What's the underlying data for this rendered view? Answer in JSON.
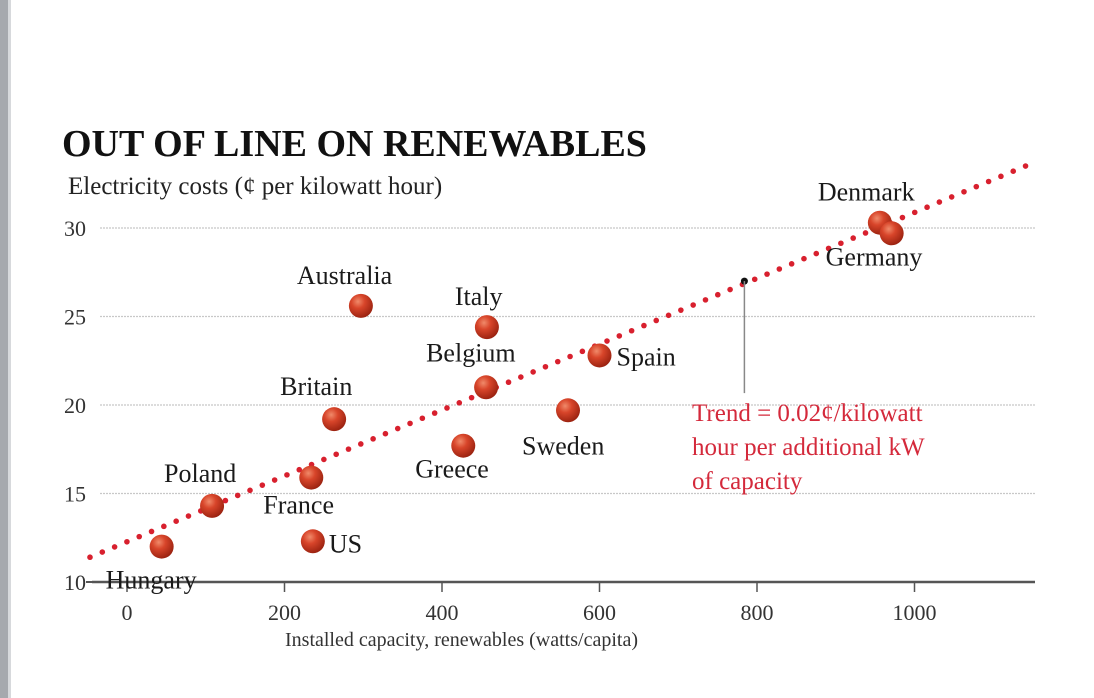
{
  "chart_data": {
    "type": "scatter",
    "title": "OUT OF LINE ON RENEWABLES",
    "subtitle": "Electricity costs (¢ per kilowatt hour)",
    "xlabel": "Installed capacity, renewables (watts/capita)",
    "ylabel": "Electricity costs (¢ per kilowatt hour)",
    "xlim": [
      -60,
      1150
    ],
    "ylim": [
      10,
      33
    ],
    "x_ticks": [
      0,
      200,
      400,
      600,
      800,
      1000
    ],
    "x_tick_labels": [
      "0",
      "200",
      "400",
      "600",
      "800",
      "1000"
    ],
    "y_ticks": [
      10,
      15,
      20,
      25,
      30
    ],
    "y_tick_labels": [
      "10",
      "15",
      "20",
      "25",
      "30"
    ],
    "grid": true,
    "points": [
      {
        "label": "Hungary",
        "x": 44,
        "y": 12.0
      },
      {
        "label": "Poland",
        "x": 108,
        "y": 14.3
      },
      {
        "label": "France",
        "x": 234,
        "y": 15.9
      },
      {
        "label": "US",
        "x": 236,
        "y": 12.3
      },
      {
        "label": "Britain",
        "x": 263,
        "y": 19.2
      },
      {
        "label": "Australia",
        "x": 297,
        "y": 25.6
      },
      {
        "label": "Greece",
        "x": 427,
        "y": 17.7
      },
      {
        "label": "Belgium",
        "x": 456,
        "y": 21.0
      },
      {
        "label": "Italy",
        "x": 457,
        "y": 24.4
      },
      {
        "label": "Sweden",
        "x": 560,
        "y": 19.7
      },
      {
        "label": "Spain",
        "x": 600,
        "y": 22.8
      },
      {
        "label": "Denmark",
        "x": 956,
        "y": 30.3
      },
      {
        "label": "Germany",
        "x": 971,
        "y": 29.7
      }
    ],
    "trend_line": {
      "x": [
        -47,
        1141
      ],
      "y": [
        11.4,
        33.5
      ],
      "style": "dotted"
    },
    "annotation": {
      "lines": [
        "Trend = 0.02¢/kilowatt",
        "hour per additional kW",
        "of capacity"
      ],
      "anchor": {
        "x": 784,
        "y": 27.0
      }
    },
    "colors": {
      "point": "#c8321e",
      "trend": "#d8202e",
      "annotation": "#d4293b",
      "axis": "#555555",
      "grid": "#c8c8c8"
    }
  }
}
